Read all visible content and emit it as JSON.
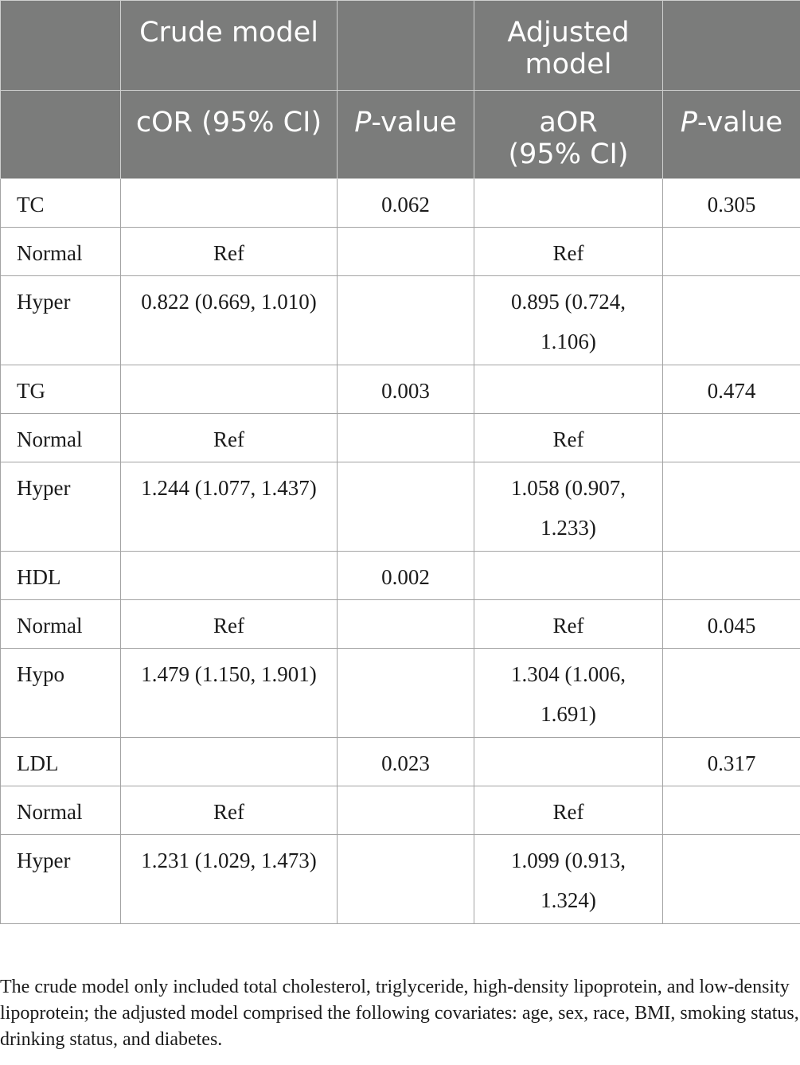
{
  "header": {
    "row1": [
      "",
      "Crude model",
      "",
      "Adjusted model",
      ""
    ],
    "row2": {
      "c0": "",
      "c1": "cOR (95% CI)",
      "c2_italic": "P",
      "c2_rest": "-value",
      "c3": "aOR (95% CI)",
      "c4_italic": "P",
      "c4_rest": "-value"
    }
  },
  "rows": [
    {
      "label": "TC",
      "cor": "",
      "p1": "0.062",
      "aor": "",
      "p2": "0.305"
    },
    {
      "label": "Normal",
      "cor": "Ref",
      "p1": "",
      "aor": "Ref",
      "p2": ""
    },
    {
      "label": "Hyper",
      "cor": "0.822 (0.669, 1.010)",
      "p1": "",
      "aor": "0.895 (0.724, 1.106)",
      "p2": ""
    },
    {
      "label": "TG",
      "cor": "",
      "p1": "0.003",
      "aor": "",
      "p2": "0.474"
    },
    {
      "label": "Normal",
      "cor": "Ref",
      "p1": "",
      "aor": "Ref",
      "p2": ""
    },
    {
      "label": "Hyper",
      "cor": "1.244 (1.077, 1.437)",
      "p1": "",
      "aor": "1.058 (0.907, 1.233)",
      "p2": ""
    },
    {
      "label": "HDL",
      "cor": "",
      "p1": "0.002",
      "aor": "",
      "p2": ""
    },
    {
      "label": "Normal",
      "cor": "Ref",
      "p1": "",
      "aor": "Ref",
      "p2": "0.045"
    },
    {
      "label": "Hypo",
      "cor": "1.479 (1.150, 1.901)",
      "p1": "",
      "aor": "1.304 (1.006, 1.691)",
      "p2": ""
    },
    {
      "label": "LDL",
      "cor": "",
      "p1": "0.023",
      "aor": "",
      "p2": "0.317"
    },
    {
      "label": "Normal",
      "cor": "Ref",
      "p1": "",
      "aor": "Ref",
      "p2": ""
    },
    {
      "label": "Hyper",
      "cor": "1.231 (1.029, 1.473)",
      "p1": "",
      "aor": "1.099 (0.913, 1.324)",
      "p2": ""
    }
  ],
  "footnote": "The crude model only included total cholesterol, triglyceride, high-density lipoprotein, and low-density lipoprotein; the adjusted model comprised the following covariates: age, sex, race, BMI, smoking status, drinking status, and diabetes."
}
